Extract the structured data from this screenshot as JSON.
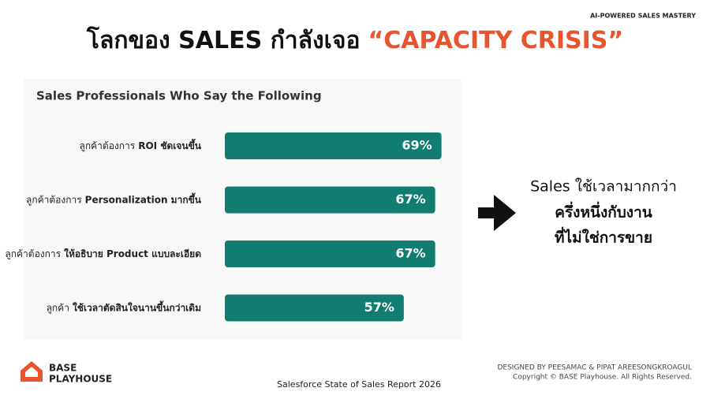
{
  "header": {
    "tag": "AI-POWERED SALES MASTERY",
    "title": "โลกของ SALES กำลังเจอ",
    "title_highlight": "“CAPACITY CRISIS”"
  },
  "chart_data": {
    "type": "bar",
    "orientation": "horizontal",
    "title": "Sales Professionals Who Say the Following",
    "categories": [
      [
        "ลูกค้าต้องการ",
        "ROI ชัดเจนขึ้น"
      ],
      [
        "ลูกค้าต้องการ",
        "Personalization มากขึ้น"
      ],
      [
        "ลูกค้าต้องการ",
        "ให้อธิบาย Product แบบละเอียด"
      ],
      [
        "ลูกค้า",
        "ใช้เวลาตัดสินใจนานขึ้นกว่าเดิม"
      ]
    ],
    "values": [
      69,
      67,
      67,
      57
    ],
    "value_labels": [
      "69%",
      "67%",
      "67%",
      "57%"
    ],
    "color": "#117c70"
  },
  "insight": {
    "lines": [
      "Sales ใช้เวลามากกว่า",
      "ครึ่งหนึ่งกับงาน",
      "ที่ไม่ใช่การขาย"
    ]
  },
  "footer": {
    "logo": [
      "BASE",
      "PLAYHOUSE"
    ],
    "source": "Salesforce State of Sales Report 2026",
    "credit": "DESIGNED BY PEESAMAC & PIPAT AREESONGKROAGUL",
    "copyright": "Copyright © BASE Playhouse. All Rights Reserved."
  }
}
